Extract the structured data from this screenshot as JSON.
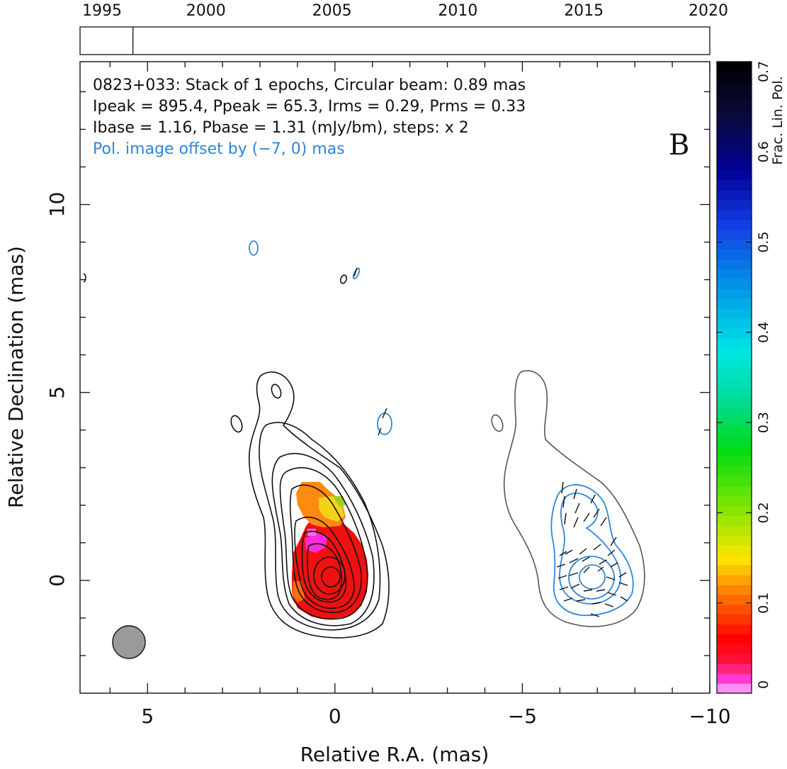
{
  "chart_data": [
    {
      "type": "timeline",
      "ticks": [
        1995,
        2000,
        2005,
        2010,
        2015,
        2020
      ],
      "xlim": [
        1995,
        2020
      ],
      "epochs": [
        1997.1
      ]
    },
    {
      "type": "heatmap",
      "annotations": [
        "0823+033: Stack of 1 epochs, Circular beam: 0.89 mas",
        "Ipeak = 895.4, Ppeak = 65.3, Irms = 0.29, Prms = 0.33",
        "Ibase = 1.16, Pbase = 1.31 (mJy/bm), steps: x 2",
        "Pol. image offset by (−7, 0) mas"
      ],
      "panel_label": "B",
      "xlabel": "Relative R.A. (mas)",
      "ylabel": "Relative Declination (mas)",
      "xlim": [
        6.8,
        -10.0
      ],
      "ylim": [
        -3.0,
        13.8
      ],
      "xticks": [
        5,
        0,
        -5,
        -10
      ],
      "xtick_labels": [
        "5",
        "0",
        "−5",
        "−10"
      ],
      "yticks": [
        0,
        5,
        10
      ],
      "ytick_labels": [
        "0",
        "5",
        "10"
      ],
      "beam": {
        "x": 5.5,
        "y": -1.65,
        "diameter_mas": 0.89
      },
      "pol_offset_mas": [
        -7,
        0
      ],
      "total_intensity_contours": {
        "color": "#111111",
        "levels_mjy": [
          1.16,
          2.32,
          4.64,
          9.28,
          18.56,
          37.12,
          74.24,
          148.48,
          296.96,
          593.92
        ]
      },
      "polarized_contours": {
        "color": "#2f86d8",
        "levels_mjy": [
          1.31,
          2.62,
          5.24,
          10.48
        ]
      },
      "lowest_contour_color": "#555555",
      "fractional_pol_pixels": [
        {
          "x": -0.6,
          "y": 2.4,
          "m": 0.1
        },
        {
          "x": -0.4,
          "y": 2.0,
          "m": 0.15
        },
        {
          "x": -0.2,
          "y": 1.7,
          "m": 0.19
        },
        {
          "x": -0.6,
          "y": 1.3,
          "m": 0.09
        },
        {
          "x": -0.3,
          "y": 1.0,
          "m": 0.01
        },
        {
          "x": 0.0,
          "y": 0.5,
          "m": 0.04
        },
        {
          "x": 0.0,
          "y": 0.0,
          "m": 0.05
        },
        {
          "x": 0.4,
          "y": -0.3,
          "m": 0.08
        },
        {
          "x": -0.3,
          "y": -0.5,
          "m": 0.05
        }
      ]
    },
    {
      "type": "colorbar",
      "label": "Frac. Lin. Pol.",
      "range": [
        0,
        0.7
      ],
      "ticks": [
        0,
        0.1,
        0.2,
        0.3,
        0.4,
        0.5,
        0.6,
        0.7
      ],
      "tick_labels": [
        "0",
        "0.1",
        "0.2",
        "0.3",
        "0.4",
        "0.5",
        "0.6",
        "0.7"
      ]
    }
  ]
}
